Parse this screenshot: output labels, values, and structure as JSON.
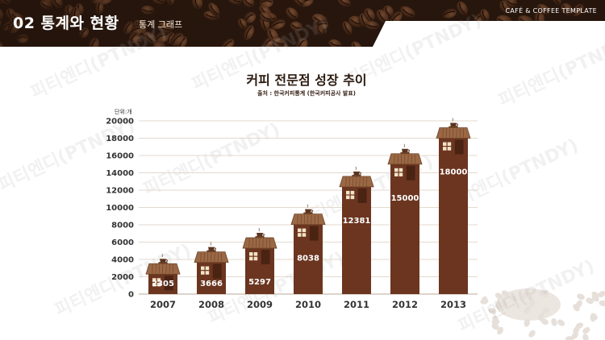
{
  "header": {
    "section_title": "02 통계와 현황",
    "section_subtitle": "통계 그래프",
    "template_label": "CAFÉ & COFFEE TEMPLATE"
  },
  "watermark_text": "피티엔디(PTNDY)",
  "colors": {
    "bar": "#6b3520",
    "bar_shadow": "#4a2313",
    "roof": "#9a6845",
    "roof_dark": "#6e4226",
    "window": "#f3e4c8",
    "header_bg": "#2a180e",
    "grid": "#e4d9cc"
  },
  "chart_data": {
    "type": "bar",
    "title": "커피 전문점 성장 추이",
    "subtitle": "출처 : 한국커피통계  (한국커피공사  발표)",
    "unit_label": "단위:개",
    "categories": [
      "2007",
      "2008",
      "2009",
      "2010",
      "2011",
      "2012",
      "2013"
    ],
    "values": [
      2305,
      3666,
      5297,
      8038,
      12381,
      15000,
      18000
    ],
    "ylim": [
      0,
      20000
    ],
    "yticks": [
      0,
      2000,
      4000,
      6000,
      8000,
      10000,
      12000,
      14000,
      16000,
      18000,
      20000
    ],
    "grid": true,
    "legend": "none"
  }
}
